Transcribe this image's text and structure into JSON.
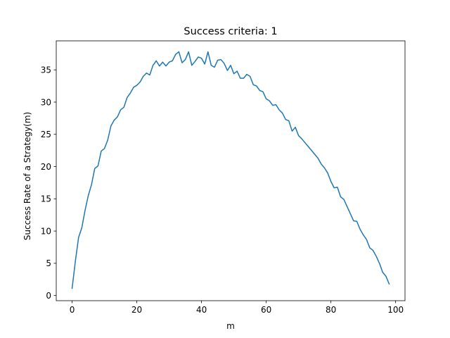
{
  "chart_data": {
    "type": "line",
    "title": "Success criteria: 1",
    "xlabel": "m",
    "ylabel": "Success Rate of a Strategy(m)",
    "xlim": [
      -4.9,
      102.9
    ],
    "ylim": [
      -0.8,
      39.5
    ],
    "xticks": [
      0,
      20,
      40,
      60,
      80,
      100
    ],
    "yticks": [
      0,
      5,
      10,
      15,
      20,
      25,
      30,
      35
    ],
    "grid": false,
    "colors": {
      "line": "#1f77b4",
      "frame": "#000000"
    },
    "series": [
      {
        "x": [
          0,
          1,
          2,
          3,
          4,
          5,
          6,
          7,
          8,
          9,
          10,
          11,
          12,
          13,
          14,
          15,
          16,
          17,
          18,
          19,
          20,
          21,
          22,
          23,
          24,
          25,
          26,
          27,
          28,
          29,
          30,
          31,
          32,
          33,
          34,
          35,
          36,
          37,
          38,
          39,
          40,
          41,
          42,
          43,
          44,
          45,
          46,
          47,
          48,
          49,
          50,
          51,
          52,
          53,
          54,
          55,
          56,
          57,
          58,
          59,
          60,
          61,
          62,
          63,
          64,
          65,
          66,
          67,
          68,
          69,
          70,
          71,
          72,
          73,
          74,
          75,
          76,
          77,
          78,
          79,
          80,
          81,
          82,
          83,
          84,
          85,
          86,
          87,
          88,
          89,
          90,
          91,
          92,
          93,
          94,
          95,
          96,
          97,
          98
        ],
        "values": [
          1.1,
          5.3,
          9.0,
          10.5,
          13.2,
          15.5,
          17.2,
          19.7,
          20.1,
          22.4,
          22.8,
          24.1,
          26.3,
          27.2,
          27.7,
          28.8,
          29.2,
          30.7,
          31.4,
          32.3,
          32.6,
          33.1,
          34.0,
          34.5,
          34.2,
          35.7,
          36.4,
          35.6,
          36.2,
          35.6,
          36.2,
          36.4,
          37.4,
          37.8,
          36.1,
          36.6,
          37.8,
          35.7,
          36.3,
          37.0,
          36.8,
          35.9,
          37.8,
          35.7,
          35.4,
          36.5,
          36.6,
          36.0,
          34.9,
          35.7,
          34.4,
          34.8,
          33.7,
          33.7,
          34.3,
          34.0,
          32.7,
          32.5,
          31.8,
          31.6,
          30.5,
          30.2,
          29.5,
          29.6,
          28.8,
          28.3,
          27.3,
          27.1,
          25.5,
          26.1,
          24.8,
          24.3,
          23.7,
          23.1,
          22.5,
          21.9,
          21.3,
          20.4,
          19.8,
          19.0,
          17.7,
          16.7,
          16.8,
          15.3,
          14.9,
          13.8,
          12.7,
          11.6,
          11.5,
          10.3,
          9.4,
          8.7,
          7.4,
          7.0,
          6.1,
          5.0,
          3.6,
          3.0,
          1.8
        ]
      }
    ]
  }
}
